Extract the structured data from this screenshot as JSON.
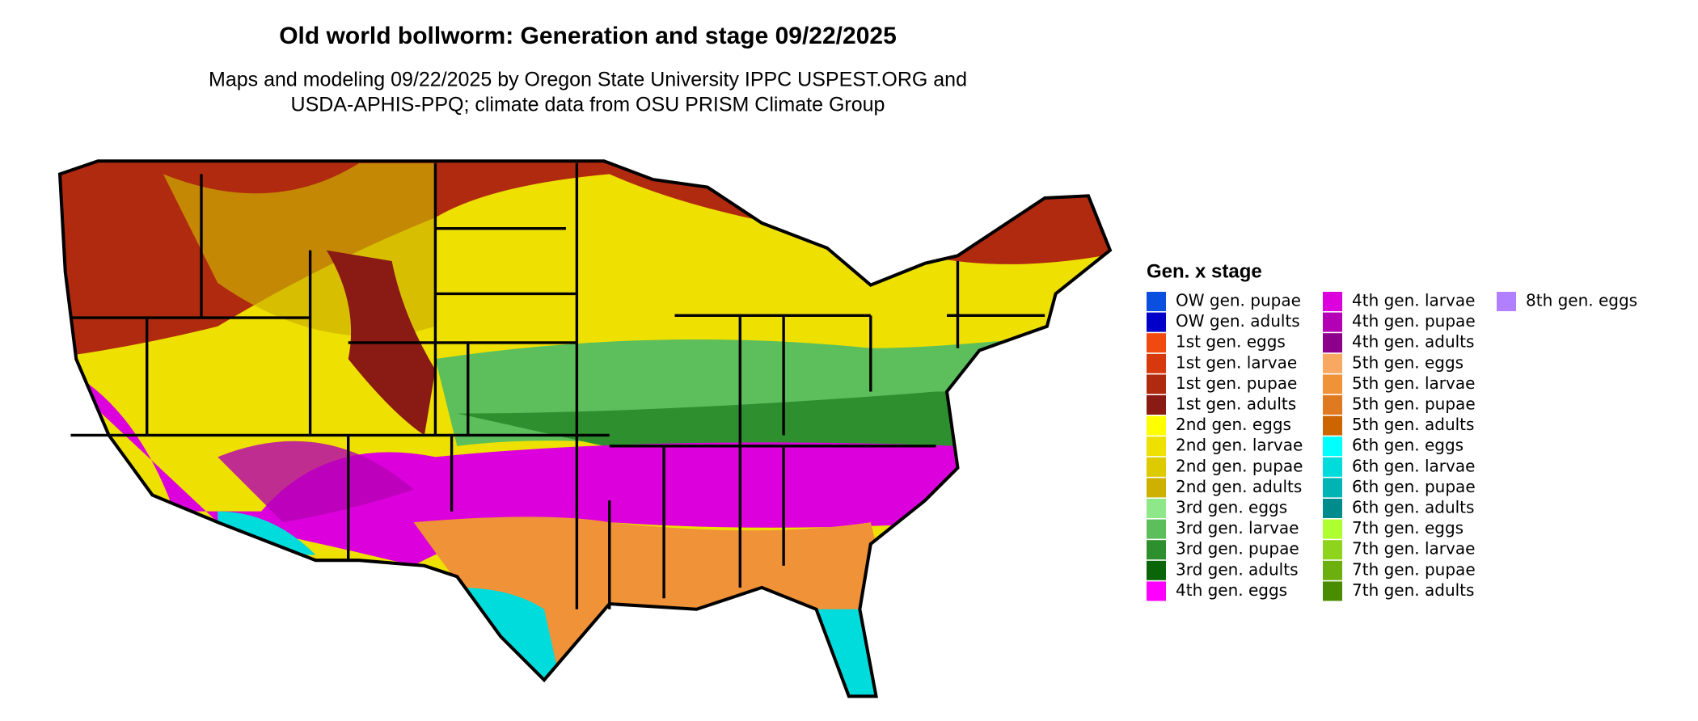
{
  "title": "Old world bollworm: Generation and stage 09/22/2025",
  "subtitle": [
    "Maps and modeling 09/22/2025 by Oregon State University IPPC USPEST.ORG and",
    "USDA-APHIS-PPQ; climate data from OSU PRISM Climate Group"
  ],
  "legend": {
    "title": "Gen. x stage",
    "columns": [
      [
        {
          "label": "OW gen. pupae",
          "color": "#0a4fe0"
        },
        {
          "label": "OW gen. adults",
          "color": "#0000c8"
        },
        {
          "label": "1st gen. eggs",
          "color": "#f04a10"
        },
        {
          "label": "1st gen. larvae",
          "color": "#d8380e"
        },
        {
          "label": "1st gen. pupae",
          "color": "#b02a10"
        },
        {
          "label": "1st gen. adults",
          "color": "#8a1a14"
        },
        {
          "label": "2nd gen. eggs",
          "color": "#ffff00"
        },
        {
          "label": "2nd gen. larvae",
          "color": "#eee000"
        },
        {
          "label": "2nd gen. pupae",
          "color": "#ddca00"
        },
        {
          "label": "2nd gen. adults",
          "color": "#cdb000"
        },
        {
          "label": "3rd gen. eggs",
          "color": "#8ee88a"
        },
        {
          "label": "3rd gen. larvae",
          "color": "#5cbf5c"
        },
        {
          "label": "3rd gen. pupae",
          "color": "#2e8f2e"
        },
        {
          "label": "3rd gen. adults",
          "color": "#0a6408"
        },
        {
          "label": "4th gen. eggs",
          "color": "#ff00ff"
        }
      ],
      [
        {
          "label": "4th gen. larvae",
          "color": "#dc00dc"
        },
        {
          "label": "4th gen. pupae",
          "color": "#b400b4"
        },
        {
          "label": "4th gen. adults",
          "color": "#8c008c"
        },
        {
          "label": "5th gen. eggs",
          "color": "#f8a860"
        },
        {
          "label": "5th gen. larvae",
          "color": "#ef9238"
        },
        {
          "label": "5th gen. pupae",
          "color": "#e07a20"
        },
        {
          "label": "5th gen. adults",
          "color": "#cc6400"
        },
        {
          "label": "6th gen. eggs",
          "color": "#00ffff"
        },
        {
          "label": "6th gen. larvae",
          "color": "#00dcdc"
        },
        {
          "label": "6th gen. pupae",
          "color": "#00b4b4"
        },
        {
          "label": "6th gen. adults",
          "color": "#008c8c"
        },
        {
          "label": "7th gen. eggs",
          "color": "#adff2f"
        },
        {
          "label": "7th gen. larvae",
          "color": "#8fd41c"
        },
        {
          "label": "7th gen. pupae",
          "color": "#6cb010"
        },
        {
          "label": "7th gen. adults",
          "color": "#4a8c00"
        }
      ],
      [
        {
          "label": "8th gen. eggs",
          "color": "#b080ff"
        }
      ]
    ]
  }
}
